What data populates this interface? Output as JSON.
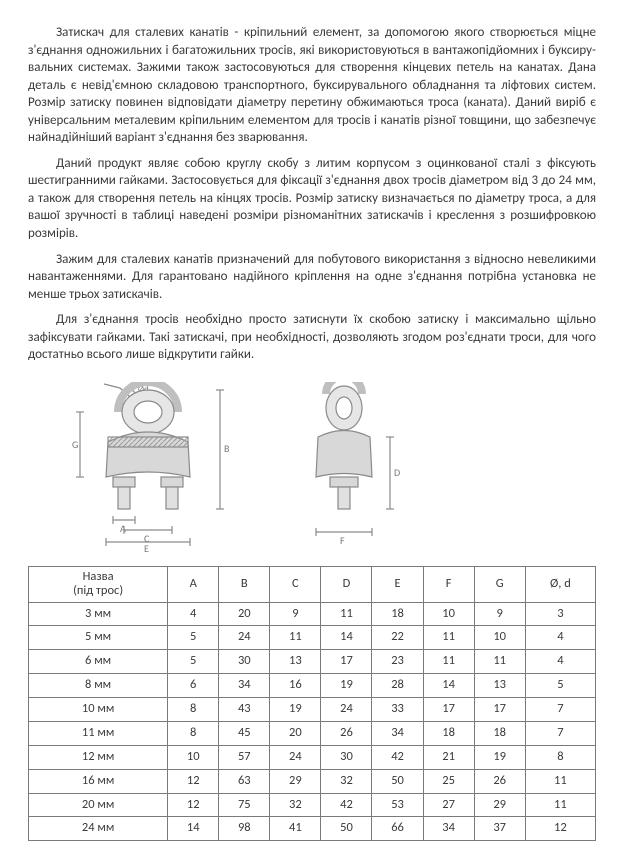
{
  "paragraphs": {
    "p1": "Затискач для сталевих канатів - кріпильний елемент, за допомогою якого створюється міцне з'єднання одножильних і багатожильних тросів, які використовуються в вантажопідйомних і буксиру-вальних системах. Зажими також застосовуються для створення кінцевих петель на канатах. Дана деталь є невід'ємною складовою транспортного, буксирувального обладнання та ліфтових систем. Розмір затиску повинен відповідати діаметру перетину обжимаються троса (каната). Даний виріб є універсальним металевим кріпильним елементом для тросів і канатів різної товщини, що забезпечує найнадійніший варіант з'єднання без зварювання.",
    "p2": "Даний продукт являє собою круглу скобу з литим корпусом з оцинкованої сталі з фіксують шестигранними гайками. Застосовується для фіксації з'єднання двох тросів діаметром від 3 до 24 мм, а також для створення петель на кінцях тросів. Розмір затиску визначається по діаметру троса, а для вашої зручності в таблиці наведені розміри різноманітних затискачів і креслення з розшифровкою розмірів.",
    "p3": "Зажим для сталевих канатів призначений для побутового використання з відносно невеликими навантаженнями. Для гарантовано надійного кріплення на одне з'єднання потрібна установка не менше трьох затискачів.",
    "p4": "Для з'єднання тросів необхідно просто затиснути їх скобою затиску і максимально щільно зафіксувати гайками. Такі затискачі, при необхідності, дозволяють згодом роз'єднати троси, для чого достатньо всього лише відкрутити гайки."
  },
  "diagram": {
    "labels": {
      "Od": "Ød",
      "A": "A",
      "B": "B",
      "C": "C",
      "D": "D",
      "E": "E",
      "F": "F",
      "G": "G"
    },
    "stroke": "#8a8a8a",
    "fill": "#d0d0d0",
    "hatch": "#bcbcbc"
  },
  "table": {
    "header": {
      "name_l1": "Назва",
      "name_l2": "(під трос)",
      "A": "A",
      "B": "B",
      "C": "C",
      "D": "D",
      "E": "E",
      "F": "F",
      "G": "G",
      "Od": "Ø, d"
    },
    "rows": [
      {
        "name": "3 мм",
        "A": "4",
        "B": "20",
        "C": "9",
        "D": "11",
        "E": "18",
        "F": "10",
        "G": "9",
        "Od": "3"
      },
      {
        "name": "5 мм",
        "A": "5",
        "B": "24",
        "C": "11",
        "D": "14",
        "E": "22",
        "F": "11",
        "G": "10",
        "Od": "4"
      },
      {
        "name": "6 мм",
        "A": "5",
        "B": "30",
        "C": "13",
        "D": "17",
        "E": "23",
        "F": "11",
        "G": "11",
        "Od": "4"
      },
      {
        "name": "8 мм",
        "A": "6",
        "B": "34",
        "C": "16",
        "D": "19",
        "E": "28",
        "F": "14",
        "G": "13",
        "Od": "5"
      },
      {
        "name": "10 мм",
        "A": "8",
        "B": "43",
        "C": "19",
        "D": "24",
        "E": "33",
        "F": "17",
        "G": "17",
        "Od": "7"
      },
      {
        "name": "11 мм",
        "A": "8",
        "B": "45",
        "C": "20",
        "D": "26",
        "E": "34",
        "F": "18",
        "G": "18",
        "Od": "7"
      },
      {
        "name": "12 мм",
        "A": "10",
        "B": "57",
        "C": "24",
        "D": "30",
        "E": "42",
        "F": "21",
        "G": "19",
        "Od": "8"
      },
      {
        "name": "16 мм",
        "A": "12",
        "B": "63",
        "C": "29",
        "D": "32",
        "E": "50",
        "F": "25",
        "G": "26",
        "Od": "11"
      },
      {
        "name": "20 мм",
        "A": "12",
        "B": "75",
        "C": "32",
        "D": "42",
        "E": "53",
        "F": "27",
        "G": "29",
        "Od": "11"
      },
      {
        "name": "24 мм",
        "A": "14",
        "B": "98",
        "C": "41",
        "D": "50",
        "E": "66",
        "F": "34",
        "G": "37",
        "Od": "12"
      }
    ]
  }
}
